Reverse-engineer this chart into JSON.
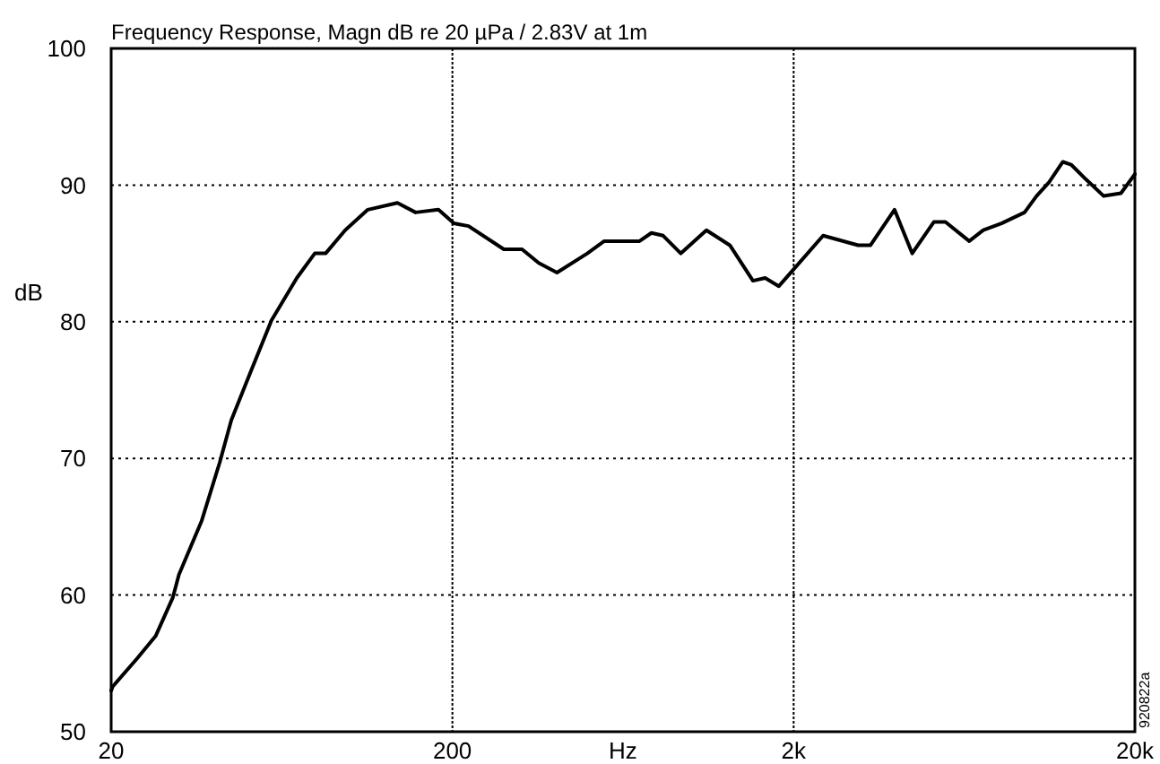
{
  "chart_data": {
    "type": "line",
    "title": "Frequency Response, Magn dB re 20 µPa / 2.83V at 1m",
    "xlabel": "Hz",
    "ylabel": "dB",
    "log": "x",
    "grid": true,
    "line_style": "solid",
    "marker": "none",
    "xlim": [
      20,
      20000
    ],
    "xticks": [
      20,
      200,
      {
        "value": 2000,
        "label": "2k"
      },
      {
        "value": 20000,
        "label": "20k"
      }
    ],
    "ylim": [
      50,
      100
    ],
    "yticks": [
      50,
      60,
      70,
      80,
      90,
      100
    ],
    "annotations": [
      "920822a"
    ],
    "series": [
      {
        "color": "#000000",
        "x": [
          20,
          20.2,
          23.9,
          27,
          30.3,
          31.6,
          36.8,
          41.6,
          45,
          51,
          59,
          70,
          79,
          85,
          97,
          113,
          138,
          156,
          182,
          202,
          223,
          283,
          320,
          358,
          405,
          497,
          557,
          707,
          766,
          829,
          934,
          1110,
          1300,
          1520,
          1650,
          1810,
          2010,
          2440,
          3090,
          3360,
          3950,
          4450,
          5150,
          5570,
          6540,
          7190,
          8130,
          9500,
          10300,
          11200,
          12300,
          13000,
          14400,
          16200,
          18200,
          20000
        ],
        "values": [
          53,
          53.3,
          55.4,
          57,
          59.8,
          61.5,
          65.4,
          69.7,
          72.8,
          76.2,
          80.1,
          83.2,
          85,
          85,
          86.7,
          88.2,
          88.7,
          88,
          88.2,
          87.2,
          87,
          85.3,
          85.3,
          84.3,
          83.6,
          85,
          85.9,
          85.9,
          86.5,
          86.3,
          85,
          86.7,
          85.6,
          83,
          83.2,
          82.6,
          83.9,
          86.3,
          85.6,
          85.6,
          88.2,
          85,
          87.3,
          87.3,
          85.9,
          86.7,
          87.2,
          88,
          89.2,
          90.2,
          91.7,
          91.5,
          90.4,
          89.2,
          89.4,
          90.8
        ]
      }
    ]
  }
}
